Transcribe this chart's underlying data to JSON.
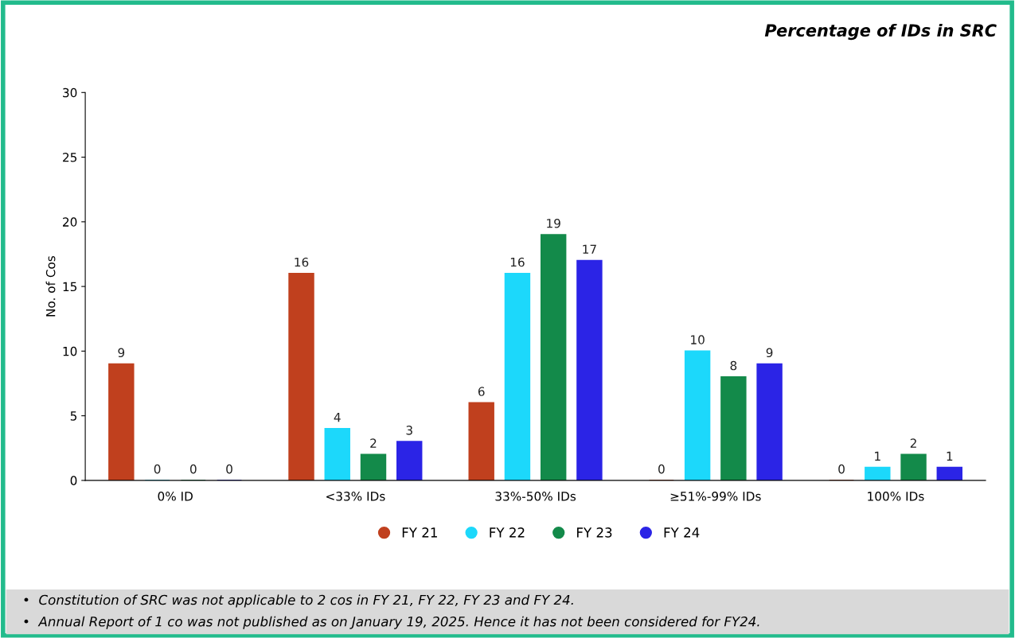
{
  "chart_data": {
    "type": "bar",
    "title": "Percentage of IDs in SRC",
    "ylabel": "No. of Cos",
    "categories": [
      "0% ID",
      "<33% IDs",
      "33%-50% IDs",
      "≥51%-99% IDs",
      "100% IDs"
    ],
    "series": [
      {
        "name": "FY 21",
        "color": "#c0401e",
        "values": [
          9,
          16,
          6,
          0,
          0
        ]
      },
      {
        "name": "FY 22",
        "color": "#1cd8fb",
        "values": [
          0,
          4,
          16,
          10,
          1
        ]
      },
      {
        "name": "FY 23",
        "color": "#138a4a",
        "values": [
          0,
          2,
          19,
          8,
          2
        ]
      },
      {
        "name": "FY 24",
        "color": "#2b24e6",
        "values": [
          0,
          3,
          17,
          9,
          1
        ]
      }
    ],
    "ylim": [
      0,
      30
    ],
    "yticks": [
      0,
      5,
      10,
      15,
      20,
      25,
      30
    ],
    "grid": false,
    "legend": "bottom",
    "data_labels": true,
    "annotations": [
      "•  Constitution of SRC was not applicable to 2 cos in FY 21, FY 22, FY 23 and FY 24.",
      "•  Annual Report of 1 co was not published as on January 19, 2025. Hence it has not been considered for FY24."
    ]
  }
}
